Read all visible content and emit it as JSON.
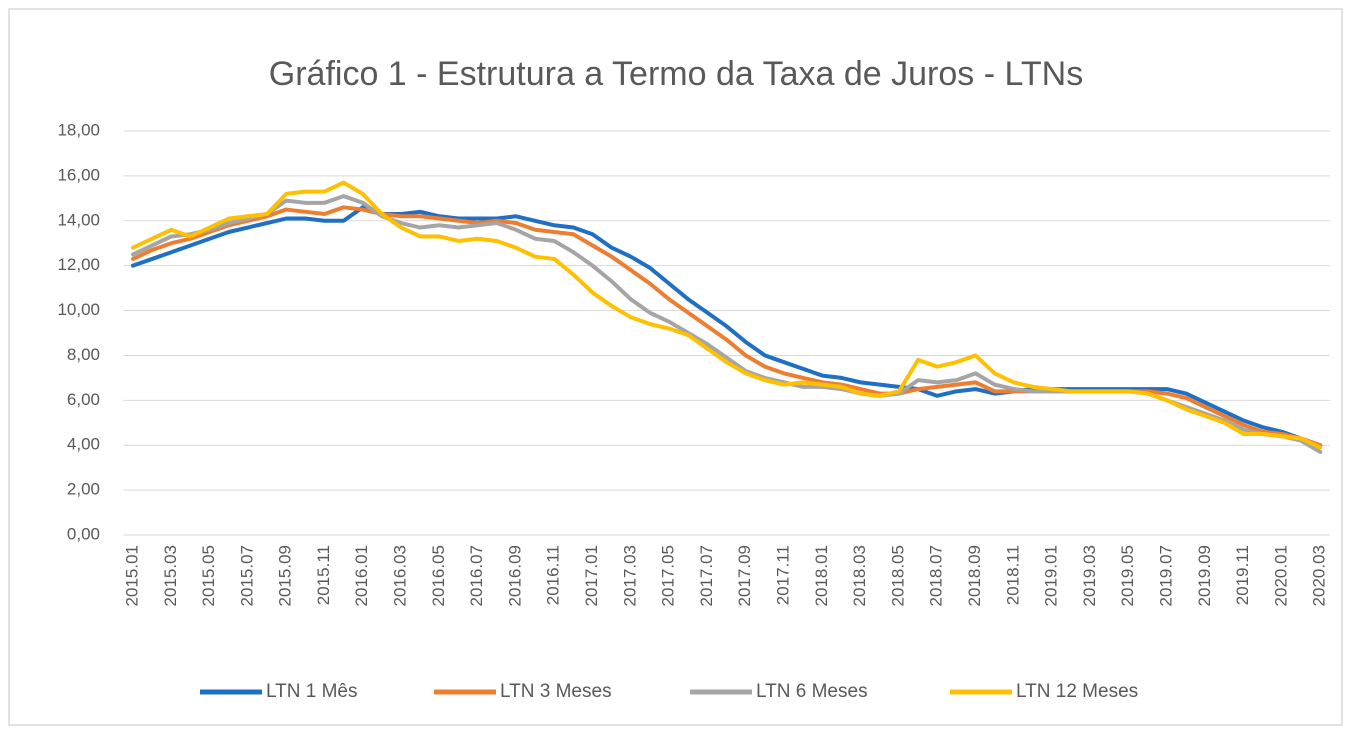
{
  "chart_data": {
    "type": "line",
    "title": "Gráfico 1 - Estrutura a Termo da Taxa de Juros - LTNs",
    "categories": [
      "2015.01",
      null,
      "2015.03",
      null,
      "2015.05",
      null,
      "2015.07",
      null,
      "2015.09",
      null,
      "2015.11",
      null,
      "2016.01",
      null,
      "2016.03",
      null,
      "2016.05",
      null,
      "2016.07",
      null,
      "2016.09",
      null,
      "2016.11",
      null,
      "2017.01",
      null,
      "2017.03",
      null,
      "2017.05",
      null,
      "2017.07",
      null,
      "2017.09",
      null,
      "2017.11",
      null,
      "2018.01",
      null,
      "2018.03",
      null,
      "2018.05",
      null,
      "2018.07",
      null,
      "2018.09",
      null,
      "2018.11",
      null,
      "2019.01",
      null,
      "2019.03",
      null,
      "2019.05",
      null,
      "2019.07",
      null,
      "2019.09",
      null,
      "2019.11",
      null,
      "2020.01",
      null,
      "2020.03"
    ],
    "series": [
      {
        "name": "LTN 1 Mês",
        "color": "#1f6fc5",
        "values": [
          12.0,
          12.3,
          12.6,
          12.9,
          13.2,
          13.5,
          13.7,
          13.9,
          14.1,
          14.1,
          14.0,
          14.0,
          14.6,
          14.3,
          14.3,
          14.4,
          14.2,
          14.1,
          14.1,
          14.1,
          14.2,
          14.0,
          13.8,
          13.7,
          13.4,
          12.8,
          12.4,
          11.9,
          11.2,
          10.5,
          9.9,
          9.3,
          8.6,
          8.0,
          7.7,
          7.4,
          7.1,
          7.0,
          6.8,
          6.7,
          6.6,
          6.5,
          6.2,
          6.4,
          6.5,
          6.3,
          6.4,
          6.5,
          6.5,
          6.5,
          6.5,
          6.5,
          6.5,
          6.5,
          6.5,
          6.3,
          5.9,
          5.5,
          5.1,
          4.8,
          4.6,
          4.3,
          4.0
        ]
      },
      {
        "name": "LTN 3 Meses",
        "color": "#ed7d31",
        "values": [
          12.3,
          12.7,
          13.0,
          13.2,
          13.5,
          13.8,
          14.0,
          14.2,
          14.5,
          14.4,
          14.3,
          14.6,
          14.5,
          14.3,
          14.2,
          14.2,
          14.1,
          14.0,
          13.9,
          14.0,
          13.9,
          13.6,
          13.5,
          13.4,
          12.9,
          12.4,
          11.8,
          11.2,
          10.5,
          9.9,
          9.3,
          8.7,
          8.0,
          7.5,
          7.2,
          7.0,
          6.8,
          6.7,
          6.5,
          6.3,
          6.3,
          6.5,
          6.6,
          6.7,
          6.8,
          6.4,
          6.4,
          6.4,
          6.4,
          6.4,
          6.4,
          6.4,
          6.4,
          6.4,
          6.3,
          6.1,
          5.7,
          5.3,
          4.9,
          4.6,
          4.5,
          4.3,
          4.0
        ]
      },
      {
        "name": "LTN 6 Meses",
        "color": "#a5a5a5",
        "values": [
          12.5,
          12.9,
          13.3,
          13.4,
          13.6,
          13.9,
          14.1,
          14.3,
          14.9,
          14.8,
          14.8,
          15.1,
          14.8,
          14.2,
          13.9,
          13.7,
          13.8,
          13.7,
          13.8,
          13.9,
          13.6,
          13.2,
          13.1,
          12.6,
          12.0,
          11.3,
          10.5,
          9.9,
          9.5,
          9.0,
          8.5,
          7.9,
          7.3,
          7.0,
          6.8,
          6.6,
          6.6,
          6.5,
          6.3,
          6.2,
          6.3,
          6.9,
          6.8,
          6.9,
          7.2,
          6.7,
          6.5,
          6.4,
          6.4,
          6.4,
          6.4,
          6.4,
          6.4,
          6.3,
          6.0,
          5.7,
          5.4,
          5.1,
          4.7,
          4.5,
          4.4,
          4.2,
          3.7
        ]
      },
      {
        "name": "LTN 12 Meses",
        "color": "#ffc000",
        "values": [
          12.8,
          13.2,
          13.6,
          13.3,
          13.7,
          14.1,
          14.2,
          14.3,
          15.2,
          15.3,
          15.3,
          15.7,
          15.2,
          14.3,
          13.7,
          13.3,
          13.3,
          13.1,
          13.2,
          13.1,
          12.8,
          12.4,
          12.3,
          11.6,
          10.8,
          10.2,
          9.7,
          9.4,
          9.2,
          8.9,
          8.3,
          7.7,
          7.2,
          6.9,
          6.7,
          6.8,
          6.7,
          6.6,
          6.3,
          6.2,
          6.4,
          7.8,
          7.5,
          7.7,
          8.0,
          7.2,
          6.8,
          6.6,
          6.5,
          6.4,
          6.4,
          6.4,
          6.4,
          6.3,
          6.0,
          5.6,
          5.3,
          5.0,
          4.5,
          4.5,
          4.4,
          4.3,
          3.9
        ]
      }
    ],
    "ylim": [
      0,
      18
    ],
    "yticks": [
      {
        "value": 0,
        "label": "0,00"
      },
      {
        "value": 2,
        "label": "2,00"
      },
      {
        "value": 4,
        "label": "4,00"
      },
      {
        "value": 6,
        "label": "6,00"
      },
      {
        "value": 8,
        "label": "8,00"
      },
      {
        "value": 10,
        "label": "10,00"
      },
      {
        "value": 12,
        "label": "12,00"
      },
      {
        "value": 14,
        "label": "14,00"
      },
      {
        "value": 16,
        "label": "16,00"
      },
      {
        "value": 18,
        "label": "18,00"
      }
    ],
    "grid": true,
    "legend": "bottom"
  }
}
